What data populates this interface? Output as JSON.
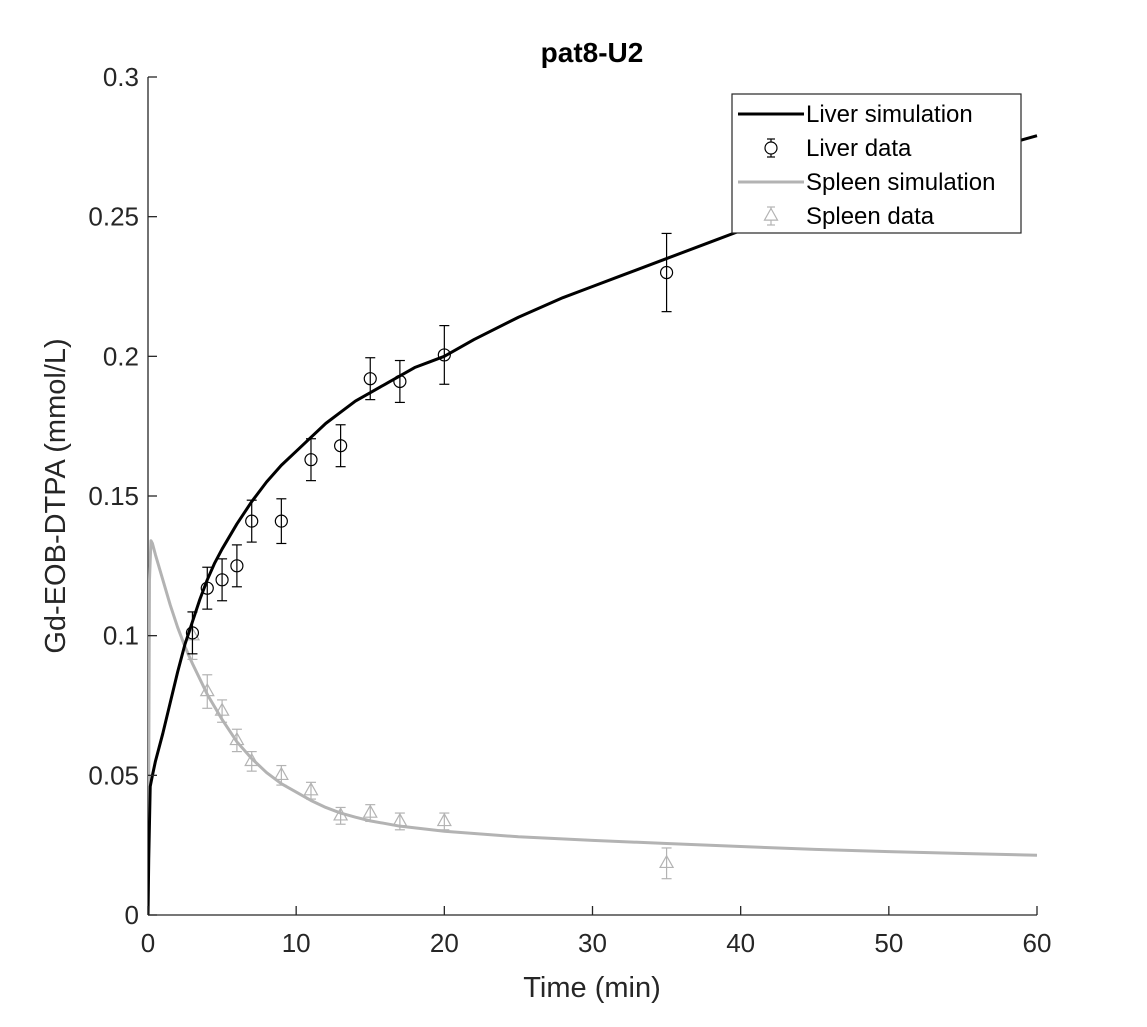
{
  "chart_data": {
    "type": "line",
    "title": "pat8-U2",
    "xlabel": "Time (min)",
    "ylabel": "Gd-EOB-DTPA (mmol/L)",
    "xlim": [
      0,
      60
    ],
    "ylim": [
      0,
      0.3
    ],
    "x_ticks": [
      0,
      10,
      20,
      30,
      40,
      50,
      60
    ],
    "x_tick_labels": [
      "0",
      "10",
      "20",
      "30",
      "40",
      "50",
      "60"
    ],
    "y_ticks": [
      0,
      0.05,
      0.1,
      0.15,
      0.2,
      0.25,
      0.3
    ],
    "y_tick_labels": [
      "0",
      "0.05",
      "0.1",
      "0.15",
      "0.2",
      "0.25",
      "0.3"
    ],
    "grid": false,
    "legend_position": "top-right",
    "colors": {
      "liver": "#000000",
      "spleen": "#b3b3b3",
      "axis": "#262626"
    },
    "series": [
      {
        "name": "Liver simulation",
        "kind": "line",
        "color": "#000000",
        "x": [
          0,
          0.05,
          0.15,
          0.3,
          0.5,
          1,
          1.5,
          2,
          2.5,
          3,
          3.5,
          4,
          4.5,
          5,
          6,
          7,
          8,
          9,
          10,
          11,
          12,
          13,
          14,
          15,
          16,
          17,
          18,
          19,
          20,
          22,
          25,
          28,
          30,
          32,
          35,
          38,
          40,
          42,
          45,
          48,
          50,
          52,
          55,
          58,
          60
        ],
        "y": [
          0,
          0.02,
          0.046,
          0.05,
          0.055,
          0.065,
          0.076,
          0.087,
          0.097,
          0.105,
          0.113,
          0.12,
          0.126,
          0.131,
          0.14,
          0.148,
          0.155,
          0.161,
          0.166,
          0.171,
          0.176,
          0.18,
          0.184,
          0.187,
          0.19,
          0.193,
          0.196,
          0.198,
          0.2,
          0.206,
          0.214,
          0.221,
          0.225,
          0.229,
          0.235,
          0.241,
          0.245,
          0.249,
          0.254,
          0.26,
          0.263,
          0.266,
          0.271,
          0.276,
          0.279
        ]
      },
      {
        "name": "Liver data",
        "kind": "errorbar",
        "marker": "circle",
        "color": "#000000",
        "x": [
          3,
          4,
          5,
          6,
          7,
          9,
          11,
          13,
          15,
          17,
          20,
          35
        ],
        "y": [
          0.101,
          0.117,
          0.12,
          0.125,
          0.141,
          0.141,
          0.163,
          0.168,
          0.192,
          0.191,
          0.2005,
          0.23
        ],
        "err": [
          0.0075,
          0.0075,
          0.0075,
          0.0075,
          0.0075,
          0.008,
          0.0075,
          0.0075,
          0.0075,
          0.0075,
          0.0105,
          0.014
        ]
      },
      {
        "name": "Spleen simulation",
        "kind": "line",
        "color": "#b3b3b3",
        "x": [
          0,
          0.05,
          0.1,
          0.2,
          0.3,
          0.5,
          1,
          1.5,
          2,
          2.5,
          3,
          4,
          5,
          6,
          7,
          8,
          9,
          10,
          11,
          12,
          13,
          14,
          15,
          17,
          20,
          25,
          30,
          35,
          40,
          45,
          50,
          55,
          60
        ],
        "y": [
          0,
          0.05,
          0.12,
          0.134,
          0.133,
          0.129,
          0.12,
          0.111,
          0.103,
          0.096,
          0.09,
          0.079,
          0.07,
          0.062,
          0.056,
          0.051,
          0.047,
          0.044,
          0.041,
          0.0385,
          0.0365,
          0.035,
          0.0337,
          0.0318,
          0.03,
          0.028,
          0.0267,
          0.0256,
          0.0245,
          0.0235,
          0.0227,
          0.022,
          0.0214
        ]
      },
      {
        "name": "Spleen data",
        "kind": "errorbar",
        "marker": "triangle",
        "color": "#b3b3b3",
        "x": [
          3,
          4,
          5,
          6,
          7,
          9,
          11,
          13,
          15,
          17,
          20,
          35
        ],
        "y": [
          0.1,
          0.08,
          0.073,
          0.0625,
          0.055,
          0.05,
          0.0445,
          0.0355,
          0.0365,
          0.0335,
          0.0335,
          0.0185
        ],
        "err": [
          0.0085,
          0.006,
          0.004,
          0.004,
          0.0035,
          0.0035,
          0.003,
          0.003,
          0.003,
          0.003,
          0.003,
          0.0055
        ]
      }
    ]
  }
}
